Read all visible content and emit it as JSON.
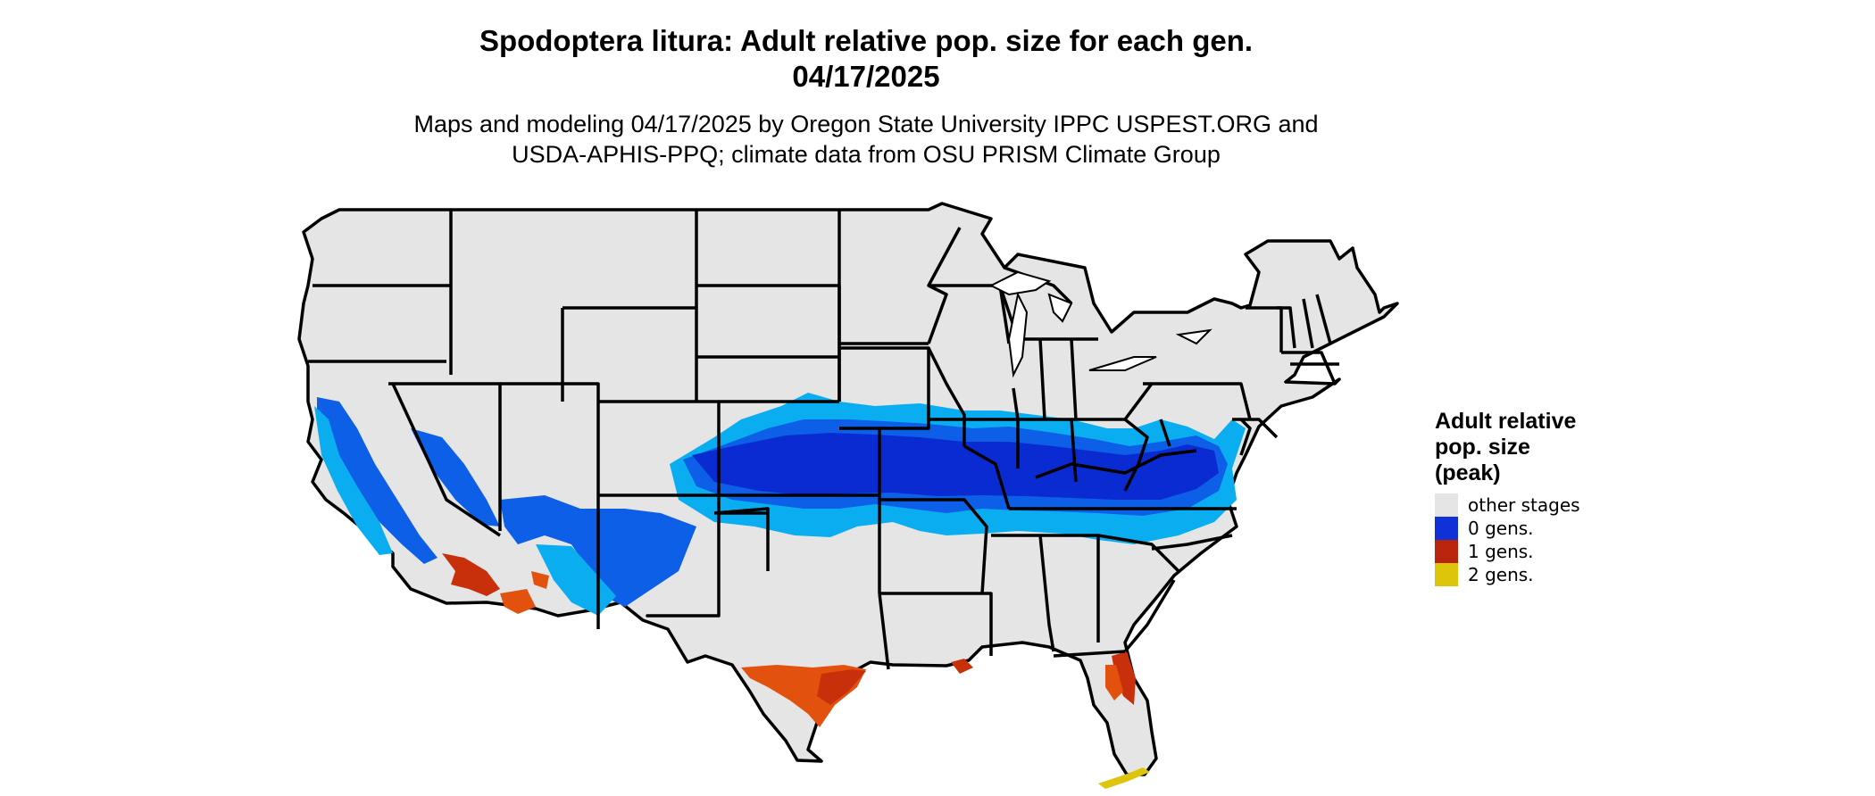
{
  "title": {
    "line1": "Spodoptera litura: Adult relative pop. size for each gen.",
    "line2": "04/17/2025"
  },
  "subtitle": {
    "line1": "Maps and modeling 04/17/2025 by Oregon State University IPPC USPEST.ORG and",
    "line2": "USDA-APHIS-PPQ; climate data from OSU PRISM Climate Group"
  },
  "legend": {
    "title_lines": [
      "Adult relative",
      "pop. size",
      "(peak)"
    ],
    "items": [
      {
        "label": "other stages",
        "color": "#e5e5e5"
      },
      {
        "label": "0 gens.",
        "color": "#1030d8"
      },
      {
        "label": "1 gens.",
        "color": "#b8250c"
      },
      {
        "label": "2 gens.",
        "color": "#dcc50a"
      }
    ]
  },
  "colors": {
    "land": "#e5e5e5",
    "blue_dark": "#0a2bd2",
    "blue_mid": "#0c5fe6",
    "blue_light": "#0aaef0",
    "red": "#c8300c",
    "orange": "#e2520e",
    "yellow": "#dcc50a",
    "border": "#000000"
  }
}
